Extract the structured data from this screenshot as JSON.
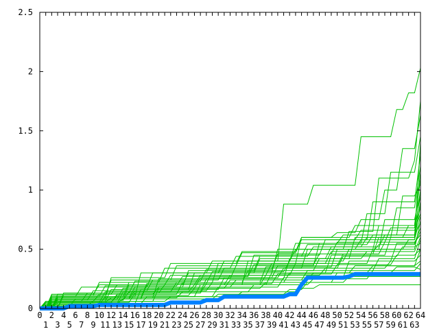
{
  "chart_data": {
    "type": "line",
    "title": "",
    "xlabel": "",
    "ylabel": "",
    "xlim": [
      0,
      64
    ],
    "ylim": [
      0,
      2.5
    ],
    "y_ticks": [
      "0",
      "0.5",
      "1",
      "1.5",
      "2",
      "2.5"
    ],
    "x_ticks": [
      "0",
      "1",
      "2",
      "3",
      "4",
      "5",
      "6",
      "7",
      "8",
      "9",
      "10",
      "11",
      "12",
      "13",
      "14",
      "15",
      "16",
      "17",
      "18",
      "19",
      "20",
      "21",
      "22",
      "23",
      "24",
      "25",
      "26",
      "27",
      "28",
      "29",
      "30",
      "31",
      "32",
      "33",
      "34",
      "35",
      "36",
      "37",
      "38",
      "39",
      "40",
      "41",
      "42",
      "43",
      "44",
      "45",
      "46",
      "47",
      "48",
      "49",
      "50",
      "51",
      "52",
      "53",
      "54",
      "55",
      "56",
      "57",
      "58",
      "59",
      "60",
      "61",
      "62",
      "63",
      "64"
    ],
    "grid": false,
    "colors": {
      "many": "#00c000",
      "highlight": "#0080ff",
      "axis": "#000000"
    },
    "series_note_format": "each series is a list of [x, y] breakpoints; y holds until one step before the next breakpoint",
    "series": [
      {
        "values": [
          [
            0,
            0
          ],
          [
            2,
            0.08
          ],
          [
            18,
            0.2
          ],
          [
            35,
            0.4
          ],
          [
            41,
            0.88
          ],
          [
            46,
            1.04
          ],
          [
            54,
            1.45
          ],
          [
            60,
            1.68
          ],
          [
            62,
            1.82
          ],
          [
            64,
            2.03
          ]
        ]
      },
      {
        "values": [
          [
            0,
            0
          ],
          [
            2,
            0.1
          ],
          [
            15,
            0.22
          ],
          [
            30,
            0.38
          ],
          [
            44,
            0.6
          ],
          [
            50,
            0.64
          ],
          [
            54,
            0.75
          ],
          [
            58,
            1.0
          ],
          [
            61,
            1.35
          ],
          [
            64,
            1.63
          ]
        ]
      },
      {
        "values": [
          [
            0,
            0
          ],
          [
            1,
            0.06
          ],
          [
            12,
            0.16
          ],
          [
            26,
            0.3
          ],
          [
            40,
            0.5
          ],
          [
            52,
            0.65
          ],
          [
            57,
            1.1
          ],
          [
            63,
            1.25
          ],
          [
            64,
            1.75
          ]
        ]
      },
      {
        "values": [
          [
            0,
            0
          ],
          [
            3,
            0.09
          ],
          [
            20,
            0.25
          ],
          [
            33,
            0.36
          ],
          [
            47,
            0.55
          ],
          [
            55,
            0.8
          ],
          [
            59,
            1.15
          ],
          [
            64,
            1.45
          ]
        ]
      },
      {
        "values": [
          [
            0,
            0
          ],
          [
            2,
            0.12
          ],
          [
            10,
            0.2
          ],
          [
            22,
            0.28
          ],
          [
            36,
            0.45
          ],
          [
            48,
            0.58
          ],
          [
            56,
            0.9
          ],
          [
            64,
            1.3
          ]
        ]
      },
      {
        "values": [
          [
            0,
            0
          ],
          [
            1,
            0.04
          ],
          [
            14,
            0.14
          ],
          [
            28,
            0.25
          ],
          [
            42,
            0.42
          ],
          [
            53,
            0.6
          ],
          [
            60,
            0.85
          ],
          [
            64,
            1.2
          ]
        ]
      },
      {
        "values": [
          [
            0,
            0
          ],
          [
            2,
            0.07
          ],
          [
            9,
            0.15
          ],
          [
            19,
            0.24
          ],
          [
            31,
            0.34
          ],
          [
            45,
            0.5
          ],
          [
            57,
            0.7
          ],
          [
            64,
            1.1
          ]
        ]
      },
      {
        "values": [
          [
            0,
            0
          ],
          [
            3,
            0.1
          ],
          [
            17,
            0.3
          ],
          [
            29,
            0.4
          ],
          [
            43,
            0.55
          ],
          [
            51,
            0.62
          ],
          [
            61,
            0.95
          ],
          [
            64,
            1.05
          ]
        ]
      },
      {
        "values": [
          [
            0,
            0
          ],
          [
            2,
            0.05
          ],
          [
            13,
            0.12
          ],
          [
            24,
            0.22
          ],
          [
            38,
            0.35
          ],
          [
            50,
            0.5
          ],
          [
            58,
            0.75
          ],
          [
            64,
            0.98
          ]
        ]
      },
      {
        "values": [
          [
            0,
            0
          ],
          [
            1,
            0.03
          ],
          [
            11,
            0.1
          ],
          [
            27,
            0.2
          ],
          [
            39,
            0.3
          ],
          [
            49,
            0.45
          ],
          [
            59,
            0.6
          ],
          [
            64,
            0.9
          ]
        ]
      },
      {
        "values": [
          [
            0,
            0
          ],
          [
            2,
            0.09
          ],
          [
            16,
            0.18
          ],
          [
            25,
            0.32
          ],
          [
            37,
            0.44
          ],
          [
            46,
            0.52
          ],
          [
            55,
            0.6
          ],
          [
            62,
            0.7
          ],
          [
            64,
            0.85
          ]
        ]
      },
      {
        "values": [
          [
            0,
            0
          ],
          [
            4,
            0.11
          ],
          [
            12,
            0.24
          ],
          [
            23,
            0.36
          ],
          [
            34,
            0.47
          ],
          [
            44,
            0.58
          ],
          [
            54,
            0.66
          ],
          [
            64,
            0.8
          ]
        ]
      },
      {
        "values": [
          [
            0,
            0
          ],
          [
            1,
            0.06
          ],
          [
            8,
            0.13
          ],
          [
            21,
            0.2
          ],
          [
            32,
            0.28
          ],
          [
            43,
            0.38
          ],
          [
            56,
            0.5
          ],
          [
            64,
            0.74
          ]
        ]
      },
      {
        "values": [
          [
            0,
            0
          ],
          [
            2,
            0.04
          ],
          [
            18,
            0.1
          ],
          [
            30,
            0.18
          ],
          [
            41,
            0.26
          ],
          [
            52,
            0.4
          ],
          [
            60,
            0.55
          ],
          [
            64,
            0.68
          ]
        ]
      },
      {
        "values": [
          [
            0,
            0
          ],
          [
            3,
            0.08
          ],
          [
            14,
            0.17
          ],
          [
            27,
            0.26
          ],
          [
            40,
            0.36
          ],
          [
            51,
            0.46
          ],
          [
            58,
            0.56
          ],
          [
            64,
            0.62
          ]
        ]
      },
      {
        "values": [
          [
            0,
            0
          ],
          [
            2,
            0.06
          ],
          [
            10,
            0.12
          ],
          [
            20,
            0.18
          ],
          [
            33,
            0.24
          ],
          [
            45,
            0.32
          ],
          [
            57,
            0.42
          ],
          [
            64,
            0.58
          ]
        ]
      },
      {
        "values": [
          [
            0,
            0
          ],
          [
            1,
            0.02
          ],
          [
            6,
            0.08
          ],
          [
            16,
            0.15
          ],
          [
            29,
            0.22
          ],
          [
            42,
            0.3
          ],
          [
            53,
            0.36
          ],
          [
            64,
            0.5
          ]
        ]
      },
      {
        "values": [
          [
            0,
            0
          ],
          [
            2,
            0.07
          ],
          [
            15,
            0.14
          ],
          [
            26,
            0.2
          ],
          [
            38,
            0.28
          ],
          [
            48,
            0.34
          ],
          [
            59,
            0.4
          ],
          [
            64,
            0.45
          ]
        ]
      },
      {
        "values": [
          [
            0,
            0
          ],
          [
            3,
            0.05
          ],
          [
            12,
            0.09
          ],
          [
            24,
            0.14
          ],
          [
            36,
            0.2
          ],
          [
            46,
            0.25
          ],
          [
            56,
            0.32
          ],
          [
            64,
            0.38
          ]
        ]
      },
      {
        "values": [
          [
            0,
            0
          ],
          [
            2,
            0.03
          ],
          [
            9,
            0.06
          ],
          [
            22,
            0.1
          ],
          [
            34,
            0.14
          ],
          [
            44,
            0.17
          ],
          [
            47,
            0.2
          ],
          [
            64,
            0.2
          ]
        ]
      },
      {
        "values": [
          [
            0,
            0
          ],
          [
            2,
            0.04
          ],
          [
            14,
            0.08
          ],
          [
            30,
            0.12
          ],
          [
            42,
            0.16
          ],
          [
            45,
            0.22
          ],
          [
            52,
            0.27
          ],
          [
            64,
            0.27
          ]
        ]
      },
      {
        "values": [
          [
            0,
            0
          ],
          [
            1,
            0.05
          ],
          [
            11,
            0.14
          ],
          [
            23,
            0.22
          ],
          [
            35,
            0.32
          ],
          [
            47,
            0.42
          ],
          [
            55,
            0.48
          ],
          [
            64,
            0.6
          ]
        ]
      },
      {
        "values": [
          [
            0,
            0
          ],
          [
            3,
            0.12
          ],
          [
            13,
            0.2
          ],
          [
            25,
            0.3
          ],
          [
            37,
            0.42
          ],
          [
            49,
            0.52
          ],
          [
            58,
            0.62
          ],
          [
            64,
            0.72
          ]
        ]
      },
      {
        "values": [
          [
            0,
            0
          ],
          [
            2,
            0.1
          ],
          [
            7,
            0.18
          ],
          [
            19,
            0.3
          ],
          [
            31,
            0.4
          ],
          [
            43,
            0.5
          ],
          [
            54,
            0.58
          ],
          [
            64,
            0.88
          ]
        ]
      },
      {
        "values": [
          [
            0,
            0
          ],
          [
            4,
            0.13
          ],
          [
            16,
            0.23
          ],
          [
            28,
            0.33
          ],
          [
            40,
            0.46
          ],
          [
            50,
            0.56
          ],
          [
            59,
            0.68
          ],
          [
            64,
            0.95
          ]
        ]
      },
      {
        "values": [
          [
            0,
            0
          ],
          [
            2,
            0.08
          ],
          [
            12,
            0.26
          ],
          [
            22,
            0.38
          ],
          [
            34,
            0.48
          ],
          [
            44,
            0.6
          ],
          [
            53,
            0.7
          ],
          [
            64,
            1.15
          ]
        ]
      },
      {
        "values": [
          [
            0,
            0
          ],
          [
            1,
            0.04
          ],
          [
            17,
            0.16
          ],
          [
            31,
            0.26
          ],
          [
            41,
            0.34
          ],
          [
            51,
            0.44
          ],
          [
            61,
            0.52
          ],
          [
            64,
            0.55
          ]
        ]
      },
      {
        "values": [
          [
            0,
            0
          ],
          [
            2,
            0.06
          ],
          [
            20,
            0.17
          ],
          [
            32,
            0.24
          ],
          [
            46,
            0.3
          ],
          [
            56,
            0.36
          ],
          [
            64,
            0.4
          ]
        ]
      },
      {
        "values": [
          [
            0,
            0
          ],
          [
            3,
            0.07
          ],
          [
            15,
            0.2
          ],
          [
            27,
            0.28
          ],
          [
            39,
            0.38
          ],
          [
            49,
            0.48
          ],
          [
            57,
            0.54
          ],
          [
            64,
            0.65
          ]
        ]
      },
      {
        "values": [
          [
            0,
            0
          ],
          [
            2,
            0.11
          ],
          [
            10,
            0.22
          ],
          [
            21,
            0.34
          ],
          [
            33,
            0.44
          ],
          [
            45,
            0.54
          ],
          [
            56,
            0.62
          ],
          [
            64,
            1.0
          ]
        ]
      },
      {
        "values": [
          [
            0,
            0
          ],
          [
            1,
            0.05
          ],
          [
            13,
            0.11
          ],
          [
            26,
            0.17
          ],
          [
            38,
            0.22
          ],
          [
            50,
            0.3
          ],
          [
            60,
            0.35
          ],
          [
            64,
            0.33
          ]
        ]
      },
      {
        "values": [
          [
            0,
            0
          ],
          [
            2,
            0.09
          ],
          [
            18,
            0.21
          ],
          [
            29,
            0.31
          ],
          [
            42,
            0.4
          ],
          [
            52,
            0.5
          ],
          [
            62,
            0.58
          ],
          [
            64,
            0.78
          ]
        ]
      },
      {
        "values": [
          [
            0,
            0
          ],
          [
            3,
            0.1
          ],
          [
            11,
            0.19
          ],
          [
            24,
            0.27
          ],
          [
            36,
            0.37
          ],
          [
            47,
            0.46
          ],
          [
            57,
            0.6
          ],
          [
            64,
            1.4
          ]
        ]
      },
      {
        "values": [
          [
            0,
            0
          ],
          [
            2,
            0.05
          ],
          [
            16,
            0.13
          ],
          [
            28,
            0.21
          ],
          [
            40,
            0.29
          ],
          [
            50,
            0.37
          ],
          [
            60,
            0.45
          ],
          [
            64,
            0.5
          ]
        ]
      }
    ],
    "highlight_series": {
      "values": [
        [
          0,
          0
        ],
        [
          5,
          0.02
        ],
        [
          10,
          0.03
        ],
        [
          22,
          0.05
        ],
        [
          28,
          0.07
        ],
        [
          31,
          0.1
        ],
        [
          42,
          0.12
        ],
        [
          44,
          0.2
        ],
        [
          45,
          0.26
        ],
        [
          52,
          0.27
        ],
        [
          53,
          0.29
        ],
        [
          64,
          0.29
        ]
      ]
    }
  }
}
